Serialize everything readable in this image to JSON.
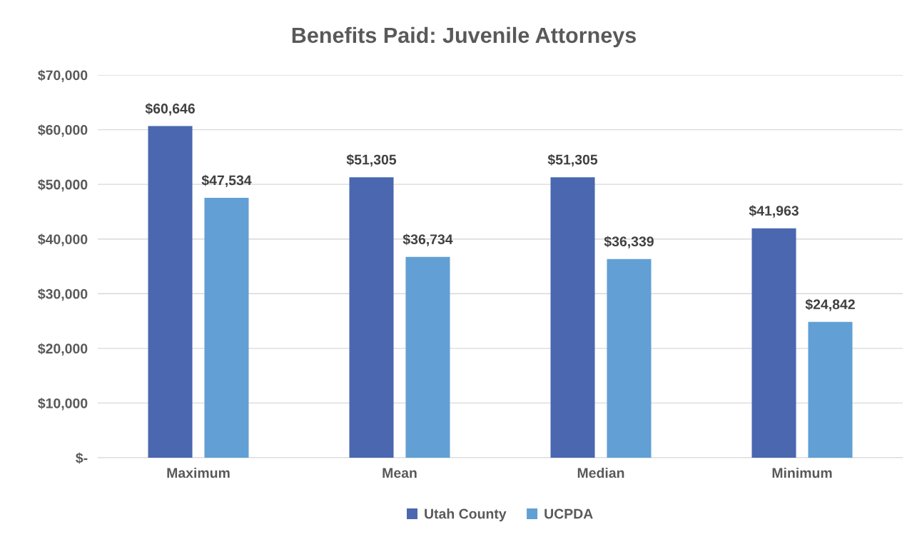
{
  "chart_data": {
    "type": "bar",
    "title": "Benefits Paid: Juvenile Attorneys",
    "categories": [
      "Maximum",
      "Mean",
      "Median",
      "Minimum"
    ],
    "series": [
      {
        "name": "Utah County",
        "color": "#4a67b0",
        "values": [
          60646,
          51305,
          51305,
          41963
        ],
        "value_labels": [
          "$60,646",
          "$51,305",
          "$51,305",
          "$41,963"
        ]
      },
      {
        "name": "UCPDA",
        "color": "#629fd4",
        "values": [
          47534,
          36734,
          36339,
          24842
        ],
        "value_labels": [
          "$47,534",
          "$36,734",
          "$36,339",
          "$24,842"
        ]
      }
    ],
    "ylim": [
      0,
      70000
    ],
    "yticks": [
      {
        "value": 0,
        "label": "$-"
      },
      {
        "value": 10000,
        "label": "$10,000"
      },
      {
        "value": 20000,
        "label": "$20,000"
      },
      {
        "value": 30000,
        "label": "$30,000"
      },
      {
        "value": 40000,
        "label": "$40,000"
      },
      {
        "value": 50000,
        "label": "$50,000"
      },
      {
        "value": 60000,
        "label": "$60,000"
      },
      {
        "value": 70000,
        "label": "$70,000"
      }
    ],
    "grid": "y",
    "legend": "bottom"
  }
}
